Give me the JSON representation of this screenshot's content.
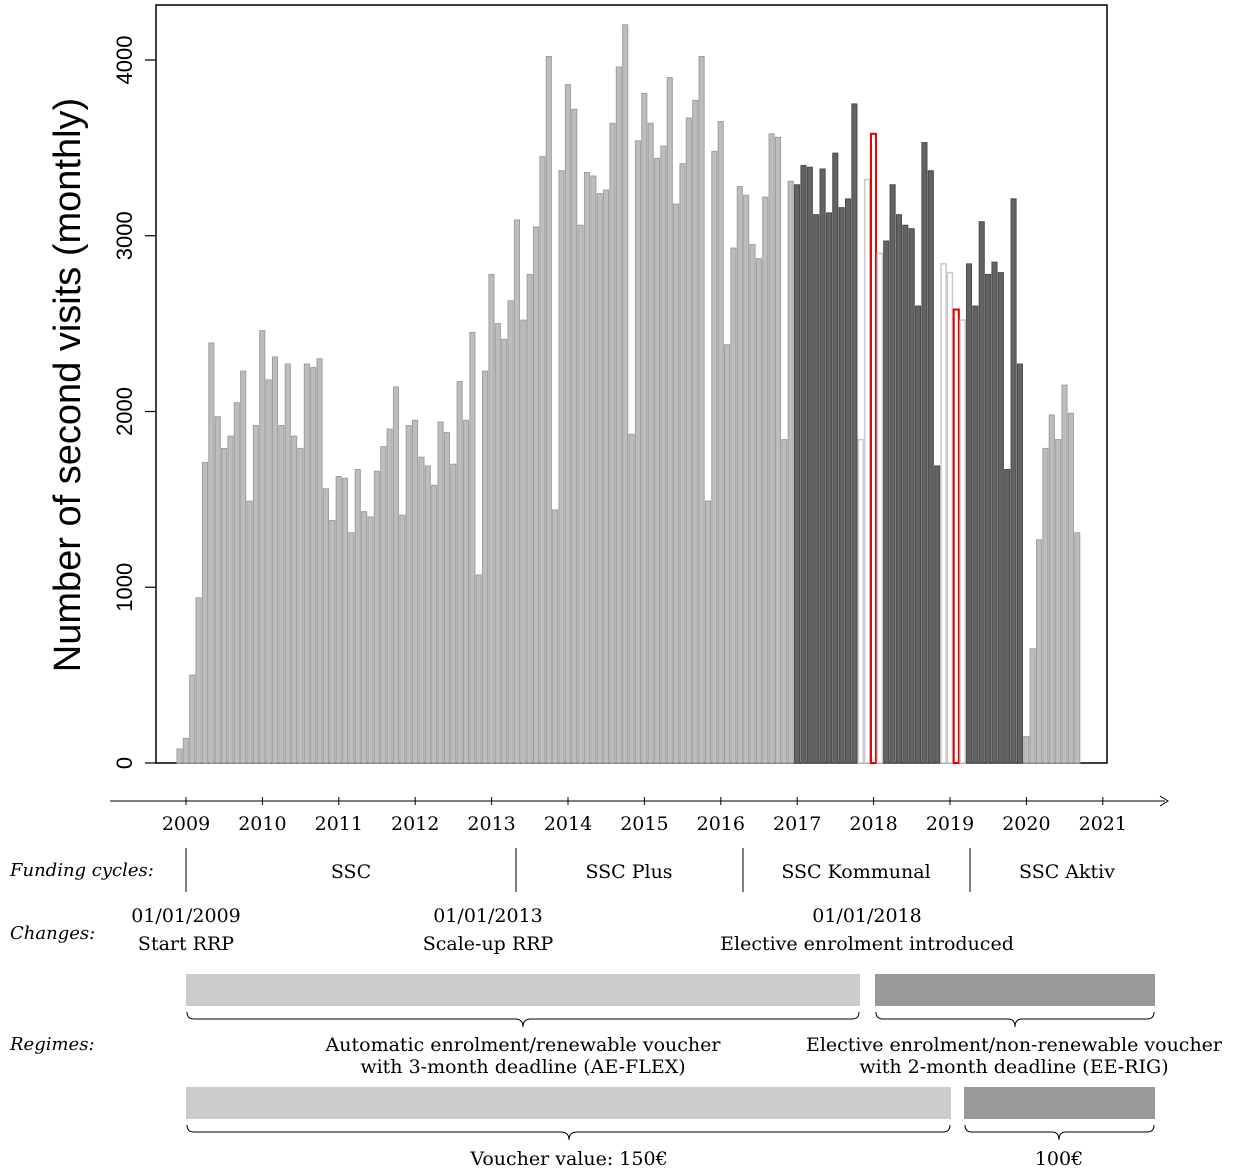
{
  "chart_data": {
    "type": "bar",
    "ylabel": "Number of second visits (monthly)",
    "yticks": [
      0,
      1000,
      2000,
      3000,
      4000
    ],
    "ylim": [
      0,
      4300
    ],
    "x_start": "2008-11",
    "x_end": "2020-12",
    "xticks": [
      "2009",
      "2010",
      "2011",
      "2012",
      "2013",
      "2014",
      "2015",
      "2016",
      "2017",
      "2018",
      "2019",
      "2020",
      "2021"
    ],
    "grid": false,
    "colors": {
      "light_bar": "#bdbdbd",
      "light_edge": "#9e9e9e",
      "dark_bar": "#636363",
      "dark_edge": "#4a4a4a",
      "highlight_edge": "#e00000",
      "hollow_edge": "#c8c8c8",
      "regime_light": "#cccccc",
      "regime_dark": "#999999"
    },
    "series": [
      {
        "values": [
          80,
          140,
          500,
          940,
          1710,
          2390,
          1970,
          1790,
          1860,
          2050,
          2230,
          1490,
          1920,
          2460,
          2180,
          2310,
          1920,
          2270,
          1860,
          1790,
          2270,
          2250,
          2300,
          1560,
          1380,
          1630,
          1620,
          1310,
          1670,
          1430,
          1400,
          1660,
          1800,
          1900,
          2140,
          1410,
          1920,
          1950,
          1740,
          1690,
          1580,
          1940,
          1880,
          1700,
          2170,
          1950,
          2450,
          1070,
          2230,
          2780,
          2500,
          2410,
          2630,
          3090,
          2520,
          2780,
          3050,
          3450,
          4020,
          1440,
          3370,
          3860,
          3720,
          3060,
          3360,
          3340,
          3240,
          3260,
          3640,
          3960,
          4200,
          1870,
          3540,
          3810,
          3640,
          3440,
          3510,
          3900,
          3180,
          3410,
          3670,
          3770,
          4020,
          1490,
          3480,
          3650,
          2380,
          2930,
          3280,
          3230,
          2950,
          2870,
          3220,
          3580,
          3560,
          1840,
          3310,
          3290,
          3400,
          3390,
          3120,
          3380,
          3130,
          3470,
          3160,
          3210,
          3750,
          1840,
          3320,
          3580,
          2900,
          2970,
          3290,
          3120,
          3060,
          3040,
          2600,
          3530,
          3370,
          1690,
          2840,
          2790,
          2580,
          2520,
          2840,
          2600,
          3080,
          2780,
          2850,
          2790,
          1670,
          3210,
          2270,
          150,
          650,
          1270,
          1790,
          1980,
          1840,
          2150,
          1990,
          1310
        ],
        "styles": [
          "L",
          "L",
          "L",
          "L",
          "L",
          "L",
          "L",
          "L",
          "L",
          "L",
          "L",
          "L",
          "L",
          "L",
          "L",
          "L",
          "L",
          "L",
          "L",
          "L",
          "L",
          "L",
          "L",
          "L",
          "L",
          "L",
          "L",
          "L",
          "L",
          "L",
          "L",
          "L",
          "L",
          "L",
          "L",
          "L",
          "L",
          "L",
          "L",
          "L",
          "L",
          "L",
          "L",
          "L",
          "L",
          "L",
          "L",
          "L",
          "L",
          "L",
          "L",
          "L",
          "L",
          "L",
          "L",
          "L",
          "L",
          "L",
          "L",
          "L",
          "L",
          "L",
          "L",
          "L",
          "L",
          "L",
          "L",
          "L",
          "L",
          "L",
          "L",
          "L",
          "L",
          "L",
          "L",
          "L",
          "L",
          "L",
          "L",
          "L",
          "L",
          "L",
          "L",
          "L",
          "L",
          "L",
          "L",
          "L",
          "L",
          "L",
          "L",
          "L",
          "L",
          "L",
          "L",
          "L",
          "L",
          "D",
          "D",
          "D",
          "D",
          "D",
          "D",
          "D",
          "D",
          "D",
          "D",
          "H",
          "H",
          "R",
          "H",
          "D",
          "D",
          "D",
          "D",
          "D",
          "D",
          "D",
          "D",
          "D",
          "H",
          "H",
          "R",
          "H",
          "D",
          "D",
          "D",
          "D",
          "D",
          "D",
          "D",
          "D",
          "D",
          "L",
          "L",
          "L",
          "L",
          "L",
          "L",
          "L",
          "L",
          "L",
          "L",
          "L"
        ]
      }
    ]
  },
  "timeline": {
    "funding_label": "Funding cycles:",
    "funding_cycles": [
      "SSC",
      "SSC Plus",
      "SSC Kommunal",
      "SSC Aktiv"
    ],
    "changes_label": "Changes:",
    "changes": [
      {
        "date": "01/01/2009",
        "text": "Start RRP"
      },
      {
        "date": "01/01/2013",
        "text": "Scale-up RRP"
      },
      {
        "date": "01/01/2018",
        "text": "Elective enrolment introduced"
      }
    ],
    "regimes_label": "Regimes:",
    "regime_1": [
      "Automatic enrolment/renewable voucher",
      "with 3-month deadline (AE-FLEX)"
    ],
    "regime_2": [
      "Elective enrolment/non-renewable voucher",
      "with 2-month deadline (EE-RIG)"
    ],
    "voucher_1": "Voucher value: 150€",
    "voucher_2": "100€"
  }
}
